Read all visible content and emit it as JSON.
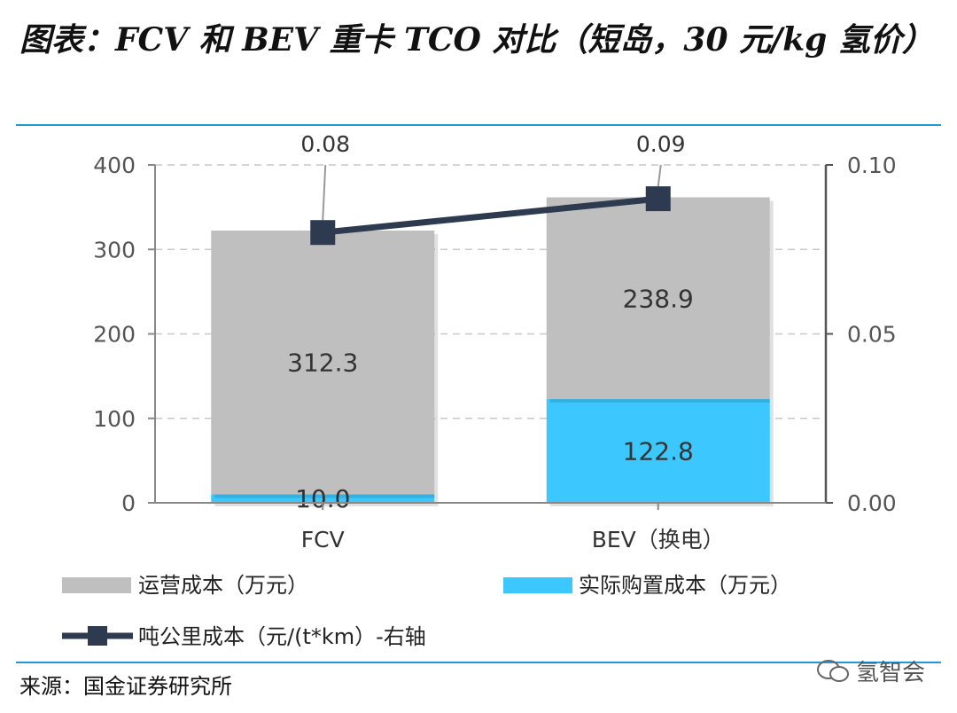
{
  "title": "图表：FCV 和 BEV 重卡 TCO 对比（短岛，30 元/kg 氢价）",
  "source": "来源：国金证券研究所",
  "watermark": "氢智会",
  "colors": {
    "operating": "#bfbfbf",
    "purchase": "#3cc8ff",
    "line": "#2e3a4f",
    "rule": "#1f9ad6"
  },
  "chart_data": {
    "type": "bar",
    "stacked": true,
    "categories": [
      "FCV",
      "BEV（换电）"
    ],
    "series": [
      {
        "name": "实际购置成本（万元）",
        "values": [
          10.0,
          122.8
        ],
        "labels": [
          "10.0",
          "122.8"
        ],
        "color": "#3cc8ff",
        "axis": "left"
      },
      {
        "name": "运营成本（万元）",
        "values": [
          312.3,
          238.9
        ],
        "labels": [
          "312.3",
          "238.9"
        ],
        "color": "#bfbfbf",
        "axis": "left"
      },
      {
        "name": "吨公里成本（元/(t*km）-右轴",
        "type": "line",
        "values": [
          0.08,
          0.09
        ],
        "labels": [
          "0.08",
          "0.09"
        ],
        "color": "#2e3a4f",
        "axis": "right"
      }
    ],
    "ylim": [
      0,
      400
    ],
    "yticks": [
      "0",
      "100",
      "200",
      "300",
      "400"
    ],
    "y2lim": [
      0,
      0.1
    ],
    "y2ticks": [
      "0.00",
      "0.05",
      "0.10"
    ],
    "grid": true,
    "legend_position": "bottom"
  }
}
